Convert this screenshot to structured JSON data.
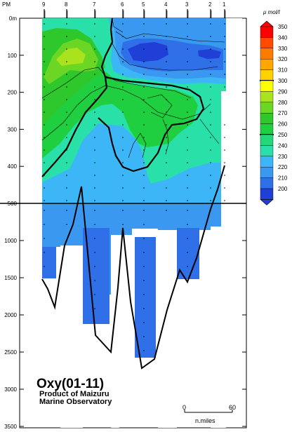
{
  "chart_data": {
    "type": "contour-section",
    "title": "Oxy(01-11)",
    "subtitle_lines": [
      "Product of Maizuru",
      "Marine Observatory"
    ],
    "x_axis_label": "PM",
    "stations": [
      {
        "label": "9",
        "x": 0
      },
      {
        "label": "8",
        "x": 1
      },
      {
        "label": "7",
        "x": 2
      },
      {
        "label": "6",
        "x": 3
      },
      {
        "label": "5",
        "x": 4
      },
      {
        "label": "4",
        "x": 5
      },
      {
        "label": "3",
        "x": 6
      },
      {
        "label": "2",
        "x": 7
      },
      {
        "label": "1",
        "x": 8
      }
    ],
    "y_axis": {
      "ticks_upper": [
        {
          "value": 0,
          "label": "0m"
        },
        {
          "value": 100,
          "label": "100"
        },
        {
          "value": 200,
          "label": "200"
        },
        {
          "value": 300,
          "label": "300"
        },
        {
          "value": 400,
          "label": "400"
        },
        {
          "value": 500,
          "label": "500"
        }
      ],
      "ticks_lower": [
        {
          "value": 1000,
          "label": "1000"
        },
        {
          "value": 1500,
          "label": "1500"
        },
        {
          "value": 2000,
          "label": "2000"
        },
        {
          "value": 2500,
          "label": "2500"
        },
        {
          "value": 3000,
          "label": "3000"
        },
        {
          "value": 3500,
          "label": "3500"
        }
      ],
      "break_depth": 500
    },
    "colorbar": {
      "unit": "μ mol/l",
      "levels": [
        {
          "value": 200,
          "label": "200",
          "color": "#1f3fd6"
        },
        {
          "value": 210,
          "label": "210",
          "color": "#2f6fe8"
        },
        {
          "value": 220,
          "label": "220",
          "color": "#3a98f0"
        },
        {
          "value": 230,
          "label": "230",
          "color": "#3cb6f6"
        },
        {
          "value": 240,
          "label": "240",
          "color": "#28e0a8"
        },
        {
          "value": 250,
          "label": "250",
          "color": "#22d878"
        },
        {
          "value": 260,
          "label": "260",
          "color": "#20cf40"
        },
        {
          "value": 270,
          "label": "270",
          "color": "#2fc82c"
        },
        {
          "value": 280,
          "label": "280",
          "color": "#6cd624"
        },
        {
          "value": 290,
          "label": "290",
          "color": "#a8e31e"
        },
        {
          "value": 300,
          "label": "300",
          "color": "#ffff00"
        },
        {
          "value": 310,
          "label": "310",
          "color": "#ffd200"
        },
        {
          "value": 320,
          "label": "320",
          "color": "#ffa600"
        },
        {
          "value": 330,
          "label": "330",
          "color": "#ff7a00"
        },
        {
          "value": 340,
          "label": "340",
          "color": "#ff4a00"
        },
        {
          "value": 350,
          "label": "350",
          "color": "#ff0000"
        }
      ]
    },
    "scale_bar": {
      "start_label": "0",
      "end_label": "60",
      "unit": "n.miles"
    }
  }
}
